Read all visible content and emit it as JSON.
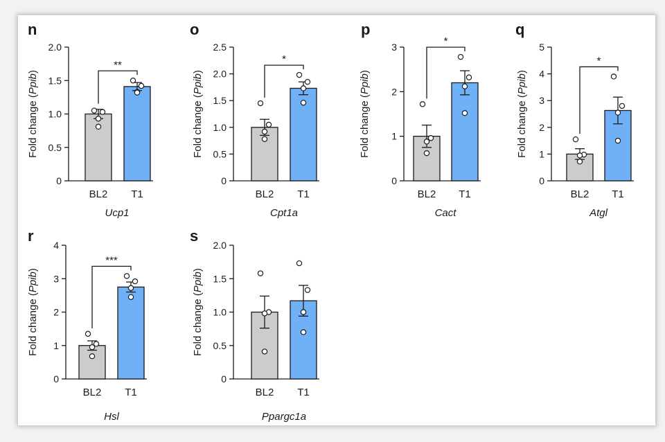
{
  "figure": {
    "panel_ylabel_prefix": "Fold change (",
    "panel_ylabel_italic": "Ppib",
    "panel_ylabel_suffix": ")"
  },
  "colors": {
    "bl2": "#cccccc",
    "t1": "#6fb0f7",
    "edge": "#1a1a1a"
  },
  "chart_data": [
    {
      "type": "bar",
      "panel": "n",
      "title": "Ucp1",
      "ylabel": "Fold change (Ppib)",
      "categories": [
        "BL2",
        "T1"
      ],
      "ylim": [
        0,
        2.0
      ],
      "yticks": [
        0,
        0.5,
        1.0,
        1.5,
        2.0
      ],
      "ytick_labels": [
        "0",
        "0.5",
        "1.0",
        "1.5",
        "2.0"
      ],
      "means": [
        1.0,
        1.41
      ],
      "sem": [
        0.07,
        0.06
      ],
      "points": [
        [
          1.05,
          1.03,
          0.93,
          0.81
        ],
        [
          1.5,
          1.42,
          1.33,
          1.32
        ]
      ],
      "significance": "**"
    },
    {
      "type": "bar",
      "panel": "o",
      "title": "Cpt1a",
      "ylabel": "Fold change (Ppib)",
      "categories": [
        "BL2",
        "T1"
      ],
      "ylim": [
        0,
        2.5
      ],
      "yticks": [
        0,
        0.5,
        1.0,
        1.5,
        2.0,
        2.5
      ],
      "ytick_labels": [
        "0",
        "0.5",
        "1.0",
        "1.5",
        "2.0",
        "2.5"
      ],
      "means": [
        1.0,
        1.73
      ],
      "sem": [
        0.15,
        0.12
      ],
      "points": [
        [
          1.45,
          1.05,
          0.92,
          0.78
        ],
        [
          1.98,
          1.85,
          1.73,
          1.46
        ]
      ],
      "significance": "*"
    },
    {
      "type": "bar",
      "panel": "p",
      "title": "Cact",
      "ylabel": "Fold change (Ppib)",
      "categories": [
        "BL2",
        "T1"
      ],
      "ylim": [
        0,
        3
      ],
      "yticks": [
        0,
        1,
        2,
        3
      ],
      "ytick_labels": [
        "0",
        "1",
        "2",
        "3"
      ],
      "means": [
        1.0,
        2.2
      ],
      "sem": [
        0.25,
        0.27
      ],
      "points": [
        [
          1.72,
          0.96,
          0.88,
          0.62
        ],
        [
          2.78,
          2.32,
          2.12,
          1.52
        ]
      ],
      "significance": "*"
    },
    {
      "type": "bar",
      "panel": "q",
      "title": "Atgl",
      "ylabel": "Fold change (Ppib)",
      "categories": [
        "BL2",
        "T1"
      ],
      "ylim": [
        0,
        5
      ],
      "yticks": [
        0,
        1,
        2,
        3,
        4,
        5
      ],
      "ytick_labels": [
        "0",
        "1",
        "2",
        "3",
        "4",
        "5"
      ],
      "means": [
        1.0,
        2.63
      ],
      "sem": [
        0.2,
        0.5
      ],
      "points": [
        [
          1.55,
          0.98,
          0.95,
          0.72
        ],
        [
          3.9,
          2.8,
          2.55,
          1.5
        ]
      ],
      "significance": "*"
    },
    {
      "type": "bar",
      "panel": "r",
      "title": "Hsl",
      "ylabel": "Fold change (Ppib)",
      "categories": [
        "BL2",
        "T1"
      ],
      "ylim": [
        0,
        4
      ],
      "yticks": [
        0,
        1,
        2,
        3,
        4
      ],
      "ytick_labels": [
        "0",
        "1",
        "2",
        "3",
        "4"
      ],
      "means": [
        1.0,
        2.75
      ],
      "sem": [
        0.14,
        0.15
      ],
      "points": [
        [
          1.35,
          1.05,
          0.95,
          0.68
        ],
        [
          3.08,
          2.92,
          2.72,
          2.45
        ]
      ],
      "significance": "***"
    },
    {
      "type": "bar",
      "panel": "s",
      "title": "Ppargc1a",
      "ylabel": "Fold change (Ppib)",
      "categories": [
        "BL2",
        "T1"
      ],
      "ylim": [
        0,
        2.0
      ],
      "yticks": [
        0,
        0.5,
        1.0,
        1.5,
        2.0
      ],
      "ytick_labels": [
        "0",
        "0.5",
        "1.0",
        "1.5",
        "2.0"
      ],
      "means": [
        1.0,
        1.17
      ],
      "sem": [
        0.24,
        0.23
      ],
      "points": [
        [
          1.58,
          1.0,
          0.98,
          0.41
        ],
        [
          1.73,
          1.33,
          1.0,
          0.7
        ]
      ],
      "significance": ""
    }
  ]
}
